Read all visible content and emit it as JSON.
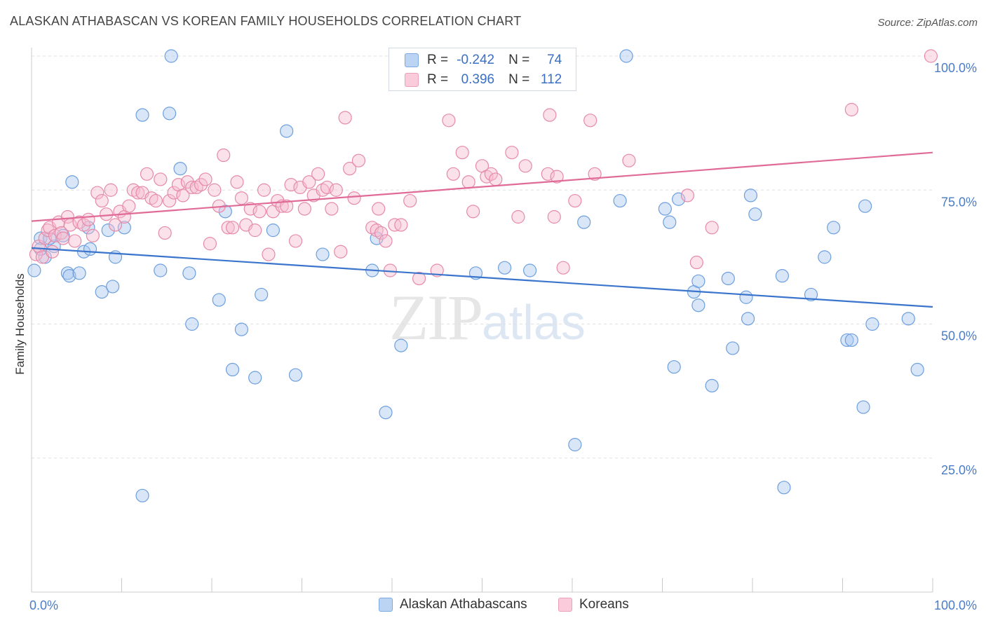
{
  "title": "ALASKAN ATHABASCAN VS KOREAN FAMILY HOUSEHOLDS CORRELATION CHART",
  "source": "Source: ZipAtlas.com",
  "watermark": {
    "zip": "ZIP",
    "atlas": "atlas"
  },
  "stats": {
    "r_label": "R =",
    "n_label": "N =",
    "rows": [
      {
        "r": "-0.242",
        "n": "74"
      },
      {
        "r": "0.396",
        "n": "112"
      }
    ]
  },
  "colors": {
    "blue_fill": "#a9c8f0",
    "blue_stroke": "#6d9fde",
    "blue_line": "#3a74cc",
    "pink_fill": "#f6bcd0",
    "pink_stroke": "#e68aaa",
    "pink_line": "#e06b96",
    "tick_text": "#4a7cc7",
    "grid": "#e0e0e0"
  },
  "chart_data": {
    "type": "scatter",
    "title": "ALASKAN ATHABASCAN VS KOREAN FAMILY HOUSEHOLDS CORRELATION CHART",
    "xlabel": "",
    "ylabel": "Family Households",
    "xlim": [
      0,
      100
    ],
    "ylim": [
      0,
      100
    ],
    "x_tick_labels": [
      {
        "value": 0,
        "label": "0.0%"
      },
      {
        "value": 100,
        "label": "100.0%"
      }
    ],
    "y_tick_labels": [
      {
        "value": 25,
        "label": "25.0%"
      },
      {
        "value": 50,
        "label": "50.0%"
      },
      {
        "value": 75,
        "label": "75.0%"
      },
      {
        "value": 100,
        "label": "100.0%"
      }
    ],
    "grid": true,
    "legend_position": "bottom",
    "series": [
      {
        "name": "Alaskan Athabascans",
        "r": -0.242,
        "n": 74,
        "trend": [
          [
            0,
            64.2
          ],
          [
            100,
            53.2
          ]
        ],
        "points": [
          [
            0.3,
            60.0
          ],
          [
            1.0,
            66.0
          ],
          [
            1.5,
            62.5
          ],
          [
            2.5,
            64.5
          ],
          [
            3.5,
            66.5
          ],
          [
            4.0,
            59.5
          ],
          [
            4.2,
            59.0
          ],
          [
            4.5,
            76.5
          ],
          [
            5.3,
            59.5
          ],
          [
            5.8,
            63.5
          ],
          [
            6.3,
            68.0
          ],
          [
            6.5,
            64.0
          ],
          [
            7.8,
            56.0
          ],
          [
            8.5,
            67.5
          ],
          [
            9.0,
            57.0
          ],
          [
            9.3,
            62.5
          ],
          [
            10.3,
            68.0
          ],
          [
            12.3,
            18.0
          ],
          [
            12.3,
            89.0
          ],
          [
            14.3,
            60.0
          ],
          [
            15.3,
            89.3
          ],
          [
            15.5,
            100.0
          ],
          [
            16.5,
            79.0
          ],
          [
            17.5,
            59.5
          ],
          [
            17.8,
            50.0
          ],
          [
            20.8,
            54.5
          ],
          [
            21.5,
            71.0
          ],
          [
            22.3,
            41.5
          ],
          [
            23.3,
            49.0
          ],
          [
            24.8,
            40.0
          ],
          [
            25.5,
            55.5
          ],
          [
            26.8,
            67.5
          ],
          [
            28.3,
            86.0
          ],
          [
            29.3,
            40.5
          ],
          [
            32.3,
            63.0
          ],
          [
            37.8,
            60.0
          ],
          [
            38.3,
            66.0
          ],
          [
            39.3,
            33.5
          ],
          [
            41.0,
            46.0
          ],
          [
            49.3,
            59.5
          ],
          [
            52.5,
            60.5
          ],
          [
            55.3,
            60.0
          ],
          [
            60.3,
            27.5
          ],
          [
            61.3,
            69.0
          ],
          [
            65.3,
            73.0
          ],
          [
            66.0,
            100.0
          ],
          [
            70.3,
            71.5
          ],
          [
            70.8,
            69.0
          ],
          [
            71.8,
            73.3
          ],
          [
            71.3,
            42.0
          ],
          [
            73.5,
            56.0
          ],
          [
            74.0,
            58.0
          ],
          [
            74.0,
            53.5
          ],
          [
            75.5,
            38.5
          ],
          [
            77.3,
            58.5
          ],
          [
            77.8,
            45.5
          ],
          [
            79.3,
            55.0
          ],
          [
            79.5,
            51.0
          ],
          [
            79.8,
            74.0
          ],
          [
            80.3,
            70.5
          ],
          [
            83.3,
            59.0
          ],
          [
            83.5,
            19.5
          ],
          [
            86.5,
            55.5
          ],
          [
            88.0,
            62.5
          ],
          [
            89.0,
            68.0
          ],
          [
            90.5,
            47.0
          ],
          [
            91.0,
            47.0
          ],
          [
            92.3,
            34.5
          ],
          [
            92.5,
            72.0
          ],
          [
            93.3,
            50.0
          ],
          [
            97.3,
            51.0
          ],
          [
            98.3,
            41.5
          ],
          [
            1.0,
            64.0
          ],
          [
            2.0,
            66.0
          ]
        ]
      },
      {
        "name": "Koreans",
        "r": 0.396,
        "n": 112,
        "trend": [
          [
            0,
            69.2
          ],
          [
            100,
            82.0
          ]
        ],
        "points": [
          [
            0.5,
            63.0
          ],
          [
            0.8,
            64.5
          ],
          [
            1.2,
            62.5
          ],
          [
            1.5,
            66.0
          ],
          [
            1.8,
            67.5
          ],
          [
            2.0,
            68.0
          ],
          [
            2.3,
            63.5
          ],
          [
            2.6,
            66.5
          ],
          [
            3.0,
            69.0
          ],
          [
            3.3,
            67.0
          ],
          [
            3.5,
            66.0
          ],
          [
            4.0,
            70.0
          ],
          [
            4.3,
            68.5
          ],
          [
            4.8,
            65.5
          ],
          [
            5.3,
            69.0
          ],
          [
            5.8,
            68.5
          ],
          [
            6.3,
            69.5
          ],
          [
            6.8,
            66.5
          ],
          [
            7.3,
            74.5
          ],
          [
            7.8,
            73.0
          ],
          [
            8.3,
            70.5
          ],
          [
            8.8,
            75.0
          ],
          [
            9.3,
            68.5
          ],
          [
            9.8,
            71.0
          ],
          [
            10.3,
            70.0
          ],
          [
            10.8,
            72.0
          ],
          [
            11.3,
            75.0
          ],
          [
            11.8,
            74.5
          ],
          [
            12.3,
            74.5
          ],
          [
            12.8,
            78.0
          ],
          [
            13.3,
            73.5
          ],
          [
            13.8,
            73.0
          ],
          [
            14.3,
            77.0
          ],
          [
            14.8,
            67.0
          ],
          [
            15.3,
            73.0
          ],
          [
            15.8,
            74.5
          ],
          [
            16.3,
            76.0
          ],
          [
            16.8,
            74.0
          ],
          [
            17.3,
            76.5
          ],
          [
            17.8,
            75.5
          ],
          [
            18.3,
            75.5
          ],
          [
            18.8,
            76.0
          ],
          [
            19.3,
            77.0
          ],
          [
            19.8,
            65.0
          ],
          [
            20.3,
            75.0
          ],
          [
            20.8,
            72.0
          ],
          [
            21.3,
            81.5
          ],
          [
            21.8,
            68.0
          ],
          [
            22.3,
            68.0
          ],
          [
            22.8,
            76.5
          ],
          [
            23.3,
            73.5
          ],
          [
            23.8,
            68.5
          ],
          [
            24.3,
            71.5
          ],
          [
            24.8,
            67.5
          ],
          [
            25.3,
            71.0
          ],
          [
            25.8,
            75.0
          ],
          [
            26.3,
            63.0
          ],
          [
            26.8,
            71.0
          ],
          [
            27.3,
            73.0
          ],
          [
            27.8,
            72.0
          ],
          [
            28.3,
            72.0
          ],
          [
            28.8,
            76.0
          ],
          [
            29.3,
            65.5
          ],
          [
            29.8,
            75.5
          ],
          [
            30.3,
            71.5
          ],
          [
            30.8,
            76.5
          ],
          [
            31.3,
            74.0
          ],
          [
            31.8,
            78.0
          ],
          [
            32.3,
            75.0
          ],
          [
            32.8,
            75.5
          ],
          [
            33.3,
            71.5
          ],
          [
            33.8,
            75.0
          ],
          [
            34.3,
            63.5
          ],
          [
            34.8,
            88.5
          ],
          [
            35.3,
            79.0
          ],
          [
            35.8,
            73.5
          ],
          [
            36.3,
            80.5
          ],
          [
            37.8,
            68.0
          ],
          [
            38.3,
            67.5
          ],
          [
            38.5,
            71.5
          ],
          [
            38.8,
            67.0
          ],
          [
            39.3,
            65.5
          ],
          [
            39.8,
            60.0
          ],
          [
            40.3,
            68.5
          ],
          [
            41.0,
            68.5
          ],
          [
            42.0,
            73.0
          ],
          [
            43.0,
            58.5
          ],
          [
            45.0,
            60.0
          ],
          [
            46.3,
            88.0
          ],
          [
            46.8,
            78.0
          ],
          [
            47.8,
            82.0
          ],
          [
            48.5,
            76.5
          ],
          [
            49.0,
            71.0
          ],
          [
            50.0,
            79.5
          ],
          [
            50.5,
            77.5
          ],
          [
            51.0,
            78.0
          ],
          [
            51.5,
            77.0
          ],
          [
            53.3,
            82.0
          ],
          [
            54.0,
            70.0
          ],
          [
            54.8,
            79.5
          ],
          [
            57.3,
            78.0
          ],
          [
            57.5,
            89.0
          ],
          [
            58.0,
            70.0
          ],
          [
            58.3,
            77.5
          ],
          [
            59.0,
            60.5
          ],
          [
            60.3,
            73.0
          ],
          [
            62.0,
            88.0
          ],
          [
            62.5,
            78.0
          ],
          [
            66.3,
            80.5
          ],
          [
            72.8,
            74.0
          ],
          [
            73.8,
            61.5
          ],
          [
            75.5,
            68.0
          ],
          [
            91.0,
            90.0
          ],
          [
            99.8,
            100.0
          ]
        ]
      }
    ]
  }
}
